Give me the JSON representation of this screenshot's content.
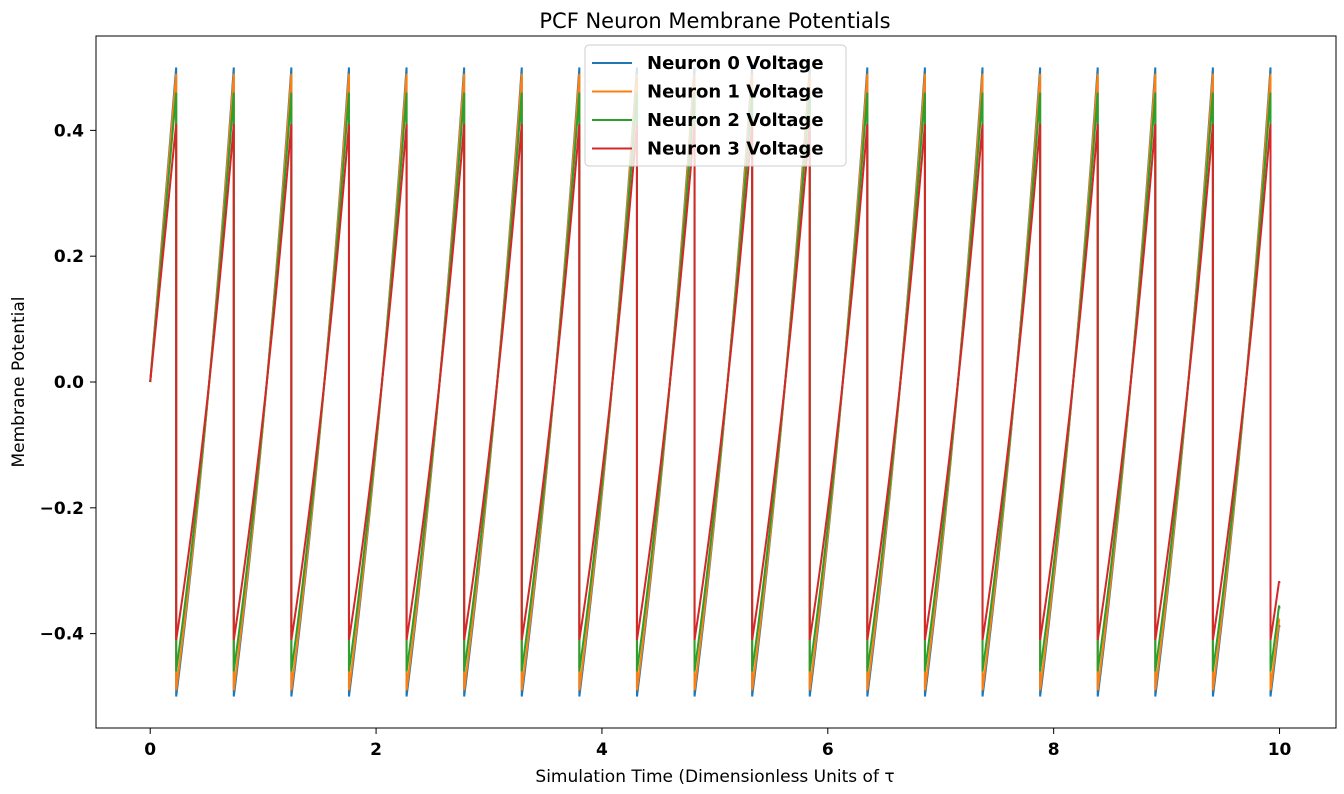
{
  "chart_data": {
    "type": "line",
    "title": "PCF Neuron Membrane Potentials",
    "xlabel": "Simulation Time (Dimensionless Units of τ",
    "ylabel": "Membrane Potential",
    "xlim": [
      -0.48,
      10.5
    ],
    "ylim": [
      -0.55,
      0.55
    ],
    "xticks": [
      0,
      2,
      4,
      6,
      8,
      10
    ],
    "xtick_labels": [
      "0",
      "2",
      "4",
      "6",
      "8",
      "10"
    ],
    "yticks": [
      -0.4,
      -0.2,
      0.0,
      0.2,
      0.4
    ],
    "ytick_labels": [
      "−0.4",
      "−0.2",
      "0.0",
      "0.2",
      "0.4"
    ],
    "grid": false,
    "legend_position": "top-center",
    "spike_period": 0.51,
    "first_spike_time": 0.23,
    "end_time": 10.0,
    "series": [
      {
        "name": "Neuron 0 Voltage",
        "color": "#1f77b4",
        "peak": 0.5,
        "reset": -0.5,
        "end_value": -0.39
      },
      {
        "name": "Neuron 1 Voltage",
        "color": "#ff7f0e",
        "peak": 0.49,
        "reset": -0.49,
        "end_value": -0.38
      },
      {
        "name": "Neuron 2 Voltage",
        "color": "#2ca02c",
        "peak": 0.46,
        "reset": -0.46,
        "end_value": -0.36
      },
      {
        "name": "Neuron 3 Voltage",
        "color": "#d62728",
        "peak": 0.41,
        "reset": -0.41,
        "end_value": -0.32
      }
    ]
  }
}
